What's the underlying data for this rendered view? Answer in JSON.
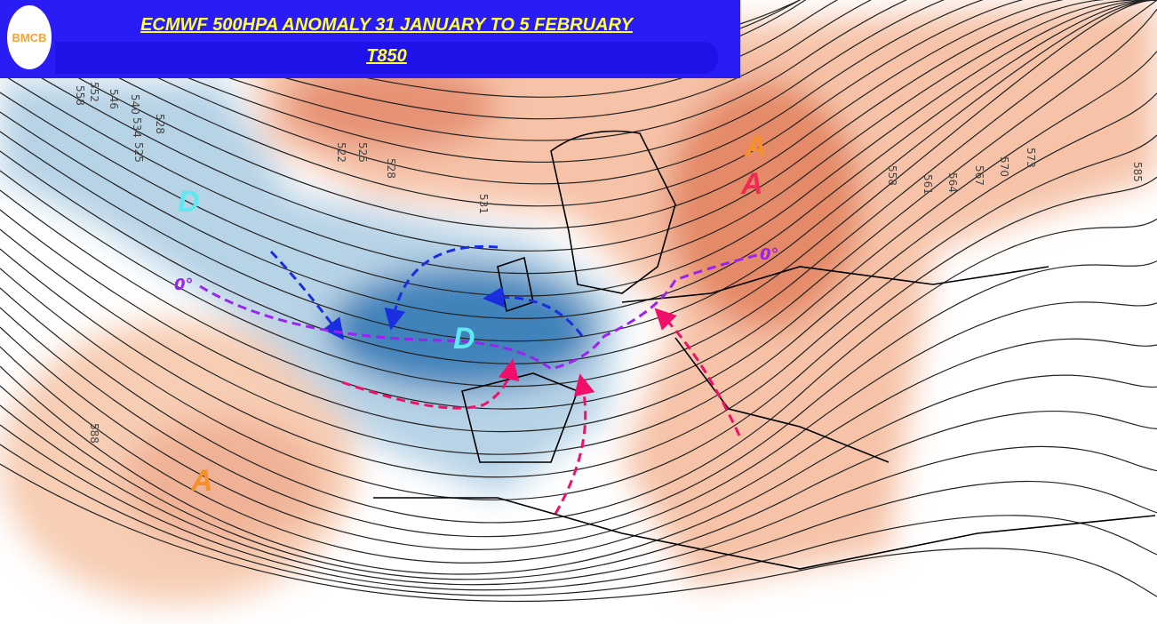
{
  "header": {
    "logo_text": "BMCB",
    "title": "ECMWF 500HPA ANOMALY  31 JANUARY TO 5 FEBRUARY",
    "subtitle": "T850"
  },
  "colors": {
    "banner": "#2a1cf5",
    "title": "#ffff3c",
    "cold": "#4a8cc0",
    "warm": "#e3805f",
    "arrow_blue": "#1a2ee0",
    "arrow_pink": "#f0106a",
    "zero_line": "#9b22f0"
  },
  "markers": {
    "low_1": "D",
    "low_2": "D",
    "high_1": "A",
    "high_2": "A",
    "high_3": "A",
    "zero_1": "0°",
    "zero_2": "0°"
  },
  "contour_labels": [
    "558",
    "552",
    "546",
    "540",
    "534",
    "528",
    "525",
    "522",
    "525",
    "528",
    "531",
    "558",
    "561",
    "564",
    "567",
    "570",
    "573",
    "585",
    "588"
  ]
}
